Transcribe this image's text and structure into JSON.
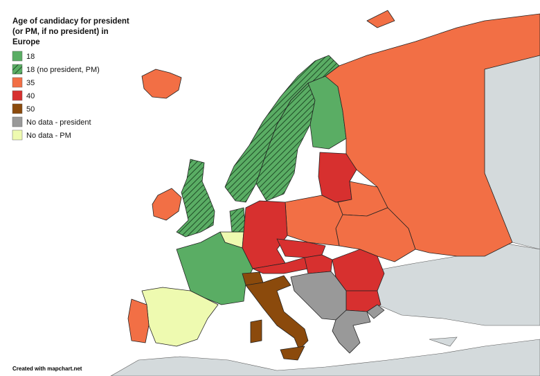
{
  "title": "Age of candidacy for president (or PM, if no president) in Europe",
  "legend": [
    {
      "label": "18",
      "color": "#5aad64",
      "hatch": false
    },
    {
      "label": "18 (no president, PM)",
      "color": "#5aad64",
      "hatch": true
    },
    {
      "label": "35",
      "color": "#f26f45",
      "hatch": false
    },
    {
      "label": "40",
      "color": "#d7302f",
      "hatch": false
    },
    {
      "label": "50",
      "color": "#8b4a0c",
      "hatch": false
    },
    {
      "label": "No data - president",
      "color": "#999999",
      "hatch": false
    },
    {
      "label": "No data - PM",
      "color": "#eefab0",
      "hatch": false
    }
  ],
  "footer": "Created with mapchart.net"
}
